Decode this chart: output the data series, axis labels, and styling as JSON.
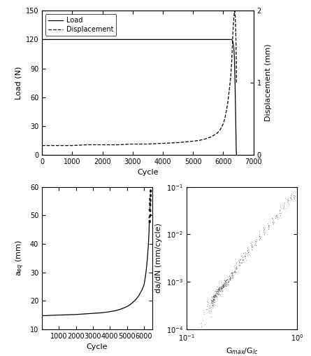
{
  "top_panel": {
    "load_cycles": [
      0,
      50,
      100,
      500,
      1000,
      2000,
      3000,
      4000,
      5000,
      5500,
      6000,
      6100,
      6200,
      6280,
      6320,
      6350,
      6370,
      6390,
      6410,
      6430,
      6440
    ],
    "load_values": [
      120,
      120,
      120,
      120,
      120,
      120,
      120,
      120,
      120,
      120,
      120,
      120,
      120,
      120,
      118,
      112,
      100,
      75,
      40,
      5,
      0
    ],
    "disp_cycles": [
      0,
      200,
      500,
      1000,
      1500,
      2000,
      2500,
      3000,
      3500,
      4000,
      4500,
      5000,
      5200,
      5400,
      5600,
      5800,
      5900,
      6000,
      6050,
      6100,
      6150,
      6200,
      6250,
      6280,
      6300,
      6320,
      6340,
      6360,
      6380,
      6400,
      6420,
      6440
    ],
    "disp_values": [
      0.13,
      0.13,
      0.13,
      0.13,
      0.14,
      0.14,
      0.14,
      0.15,
      0.15,
      0.16,
      0.17,
      0.19,
      0.2,
      0.22,
      0.25,
      0.3,
      0.35,
      0.43,
      0.5,
      0.6,
      0.72,
      0.9,
      1.1,
      1.3,
      1.5,
      1.7,
      1.85,
      1.95,
      2.0,
      1.9,
      1.6,
      1.0
    ],
    "load_ylim": [
      0,
      150
    ],
    "disp_ylim": [
      0,
      2
    ],
    "xlim": [
      0,
      7000
    ],
    "xlabel": "Cycle",
    "ylabel_left": "Load (N)",
    "ylabel_right": "Displacement (mm)",
    "yticks_left": [
      0,
      30,
      60,
      90,
      120,
      150
    ],
    "yticks_right": [
      0,
      1,
      2
    ],
    "xticks": [
      0,
      1000,
      2000,
      3000,
      4000,
      5000,
      6000,
      7000
    ],
    "legend_load": "Load",
    "legend_disp": "Displacement"
  },
  "bottom_left": {
    "cycles": [
      50,
      200,
      500,
      1000,
      1500,
      2000,
      2500,
      3000,
      3500,
      4000,
      4300,
      4600,
      4900,
      5100,
      5300,
      5500,
      5700,
      5900,
      6000,
      6050,
      6100,
      6150,
      6200,
      6250,
      6280,
      6300,
      6310,
      6320,
      6330,
      6340,
      6350,
      6360,
      6370,
      6380
    ],
    "aeq": [
      14.8,
      14.8,
      14.9,
      15.0,
      15.1,
      15.2,
      15.4,
      15.6,
      15.8,
      16.2,
      16.5,
      17.0,
      17.7,
      18.3,
      19.2,
      20.3,
      21.8,
      24.0,
      25.5,
      27.0,
      29.0,
      31.5,
      34.5,
      38.5,
      41.5,
      44.0,
      46.0,
      48.0,
      50.0,
      52.0,
      54.0,
      55.5,
      57.0,
      58.5
    ],
    "scatter_start_idx": 27,
    "ylim": [
      10,
      60
    ],
    "xlim": [
      0,
      6500
    ],
    "xlabel": "Cycle",
    "ylabel": "a$_{eq}$ (mm)",
    "yticks": [
      10,
      20,
      30,
      40,
      50,
      60
    ],
    "xticks": [
      1000,
      2000,
      3000,
      4000,
      5000,
      6000
    ]
  },
  "bottom_right": {
    "G_ratio_curve": [
      0.17,
      0.175,
      0.18,
      0.185,
      0.19,
      0.195,
      0.2,
      0.205,
      0.21,
      0.215,
      0.22,
      0.225,
      0.23,
      0.24,
      0.25,
      0.26,
      0.27,
      0.28,
      0.3,
      0.32,
      0.34,
      0.36,
      0.39,
      0.42,
      0.46,
      0.5,
      0.55,
      0.6,
      0.65,
      0.7,
      0.76,
      0.82,
      0.88,
      0.93
    ],
    "dadN_curve": [
      0.0004,
      0.00045,
      0.0005,
      0.00055,
      0.0006,
      0.00065,
      0.0007,
      0.00075,
      0.0008,
      0.00085,
      0.0009,
      0.00095,
      0.001,
      0.0011,
      0.0013,
      0.0015,
      0.0017,
      0.002,
      0.0025,
      0.003,
      0.0036,
      0.0043,
      0.0055,
      0.007,
      0.009,
      0.0115,
      0.015,
      0.019,
      0.024,
      0.03,
      0.038,
      0.048,
      0.058,
      0.065
    ],
    "G_scatter_low": [
      0.13,
      0.135,
      0.14,
      0.145,
      0.15,
      0.155,
      0.16,
      0.162,
      0.165,
      0.167,
      0.168,
      0.17,
      0.171,
      0.172,
      0.173,
      0.174,
      0.175
    ],
    "dadN_scatter_low": [
      0.0001,
      0.00012,
      0.00015,
      0.0002,
      0.00025,
      0.0003,
      0.00035,
      0.00032,
      0.00028,
      0.00025,
      0.0003,
      0.00035,
      0.00038,
      0.00036,
      0.00034,
      0.00037,
      0.00039
    ],
    "xlim": [
      0.1,
      1.0
    ],
    "ylim": [
      0.0001,
      0.1
    ],
    "xlabel": "G$_{max}$/G$_{lc}$",
    "ylabel": "da/dN (mm/cycle)"
  },
  "line_color": "#000000"
}
